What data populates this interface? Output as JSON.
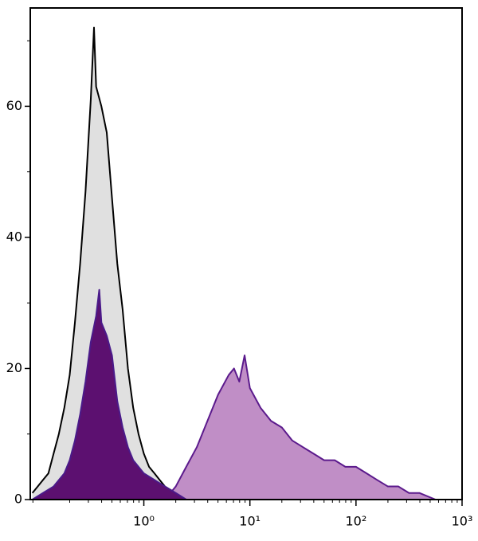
{
  "chart_data": {
    "type": "histogram-overlay",
    "xscale": "log",
    "xlim": [
      0.085,
      1000
    ],
    "ylim": [
      0,
      75
    ],
    "xticks": [
      {
        "value": 1,
        "label": "10⁰"
      },
      {
        "value": 10,
        "label": "10¹"
      },
      {
        "value": 100,
        "label": "10²"
      },
      {
        "value": 1000,
        "label": "10³"
      }
    ],
    "yticks": [
      0,
      20,
      40,
      60
    ],
    "series": [
      {
        "color": "#000000",
        "fill": "#e0e0e0",
        "x": [
          0.089,
          0.1,
          0.112,
          0.126,
          0.141,
          0.158,
          0.178,
          0.2,
          0.224,
          0.251,
          0.282,
          0.316,
          0.339,
          0.355,
          0.398,
          0.447,
          0.501,
          0.562,
          0.631,
          0.708,
          0.794,
          0.891,
          1,
          1.12,
          1.26,
          1.41,
          1.58,
          2,
          2.51
        ],
        "values": [
          1,
          2,
          3,
          4,
          7,
          10,
          14,
          19,
          27,
          36,
          47,
          61,
          72,
          63,
          60,
          56,
          46,
          36,
          29,
          20,
          14,
          10,
          7,
          5,
          4,
          3,
          2,
          1,
          0
        ]
      },
      {
        "color": "#5b1a8c",
        "fill": "#c08ec6",
        "x": [
          1.58,
          2,
          2.51,
          3.16,
          3.98,
          5.01,
          6.31,
          7.08,
          7.94,
          8.91,
          10,
          12.6,
          15.8,
          20,
          25.1,
          31.6,
          39.8,
          50.1,
          63.1,
          79.4,
          100,
          126,
          158,
          200,
          251,
          316,
          398,
          562
        ],
        "values": [
          0,
          2,
          5,
          8,
          12,
          16,
          19,
          20,
          18,
          22,
          17,
          14,
          12,
          11,
          9,
          8,
          7,
          6,
          6,
          5,
          5,
          4,
          3,
          2,
          2,
          1,
          1,
          0
        ]
      },
      {
        "color": "#4a1a8a",
        "fill": "#5c1070",
        "x": [
          0.089,
          0.112,
          0.141,
          0.178,
          0.2,
          0.224,
          0.251,
          0.282,
          0.316,
          0.355,
          0.38,
          0.398,
          0.447,
          0.501,
          0.562,
          0.631,
          0.708,
          0.794,
          0.891,
          1,
          1.26,
          1.58,
          2,
          2.51
        ],
        "values": [
          0,
          1,
          2,
          4,
          6,
          9,
          13,
          18,
          24,
          28,
          32,
          27,
          25,
          22,
          15,
          11,
          8,
          6,
          5,
          4,
          3,
          2,
          1,
          0
        ]
      }
    ]
  }
}
